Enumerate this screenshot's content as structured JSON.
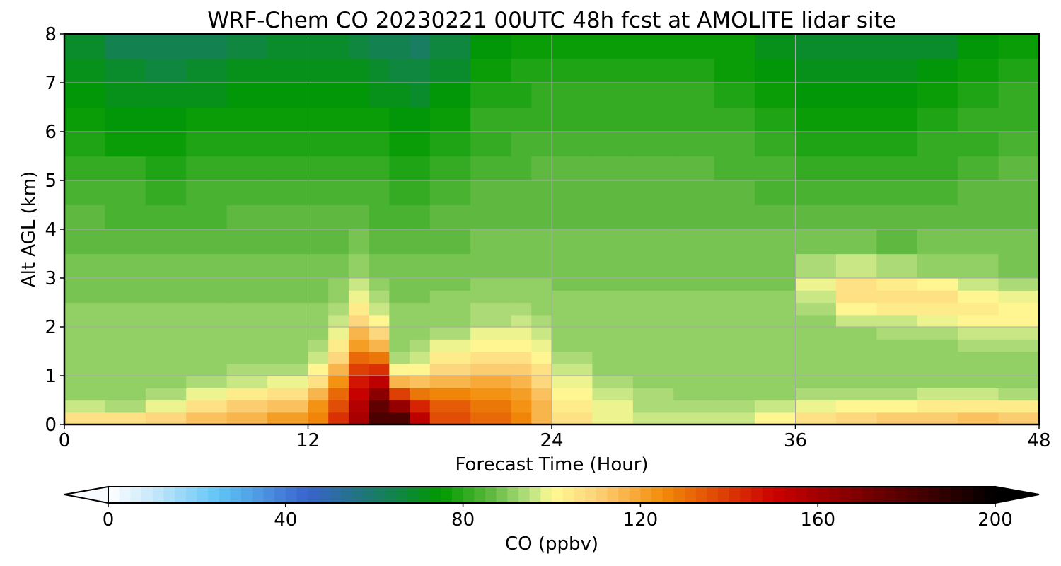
{
  "chart_data": {
    "type": "heatmap",
    "plot_kind": "filled-contour",
    "title": "WRF-Chem CO  20230221 00UTC 48h fcst at AMOLITE lidar site",
    "xlabel": "Forecast Time (Hour)",
    "ylabel": "Alt AGL (km)",
    "xlim": [
      0,
      48
    ],
    "ylim": [
      0,
      8
    ],
    "x_ticks": [
      0,
      12,
      24,
      36,
      48
    ],
    "y_ticks": [
      0,
      1,
      2,
      3,
      4,
      5,
      6,
      7,
      8
    ],
    "grid": true,
    "x": [
      0,
      2,
      4,
      6,
      8,
      10,
      12,
      13,
      14,
      15,
      16,
      17,
      18,
      20,
      22,
      23,
      24,
      26,
      28,
      30,
      32,
      34,
      36,
      38,
      40,
      42,
      44,
      46,
      48
    ],
    "y": [
      0,
      0.25,
      0.5,
      0.75,
      1,
      1.25,
      1.5,
      1.75,
      2,
      2.25,
      2.5,
      2.75,
      3,
      3.5,
      4,
      4.5,
      5,
      5.5,
      6,
      6.5,
      7,
      7.5,
      8
    ],
    "surface_co_ppbv": [
      112,
      108,
      110,
      112,
      116,
      118,
      124,
      132,
      150,
      168,
      196,
      170,
      140,
      134,
      128,
      124,
      110,
      102,
      98,
      96,
      96,
      98,
      104,
      110,
      112,
      112,
      114,
      116,
      112
    ],
    "mixing_depth_km": [
      0.45,
      0.35,
      0.35,
      0.6,
      0.85,
      0.9,
      1.0,
      1.4,
      2.0,
      2.6,
      1.0,
      0.9,
      1.2,
      1.7,
      1.8,
      1.95,
      1.6,
      1.0,
      0.7,
      0.6,
      0.55,
      0.5,
      0.45,
      0.5,
      0.55,
      0.6,
      0.6,
      0.6,
      0.5
    ],
    "elevated_layer": {
      "x_range_hours": [
        37,
        48
      ],
      "base_km": 2.0,
      "top_km": 3.4,
      "peak_co_ppbv": 108,
      "peak_at": [
        38.5,
        2.9
      ]
    },
    "free_troposphere_co_ppbv_at_8km": [
      70,
      64,
      60,
      62,
      64,
      66,
      66,
      66,
      66,
      64,
      62,
      60,
      58,
      70,
      74,
      76,
      76,
      76,
      76,
      76,
      76,
      72,
      68,
      66,
      66,
      66,
      70,
      74,
      78
    ],
    "colorbar": {
      "label": "CO  (ppbv)",
      "vmin": 0,
      "vmax": 200,
      "ticks": [
        0,
        40,
        80,
        120,
        160,
        200
      ],
      "extend": "both",
      "orientation": "horizontal",
      "position": "bottom",
      "colors": [
        {
          "v": 0,
          "c": "#ffffff"
        },
        {
          "v": 10,
          "c": "#c8e8fa"
        },
        {
          "v": 25,
          "c": "#5fc4f4"
        },
        {
          "v": 45,
          "c": "#3a63cc"
        },
        {
          "v": 60,
          "c": "#1a7a6a"
        },
        {
          "v": 75,
          "c": "#009900"
        },
        {
          "v": 86,
          "c": "#5cb83e"
        },
        {
          "v": 95,
          "c": "#b8e080"
        },
        {
          "v": 100,
          "c": "#fffb94"
        },
        {
          "v": 110,
          "c": "#fdd27a"
        },
        {
          "v": 125,
          "c": "#f28c0a"
        },
        {
          "v": 150,
          "c": "#cc0000"
        },
        {
          "v": 175,
          "c": "#660000"
        },
        {
          "v": 200,
          "c": "#000000"
        }
      ]
    }
  }
}
